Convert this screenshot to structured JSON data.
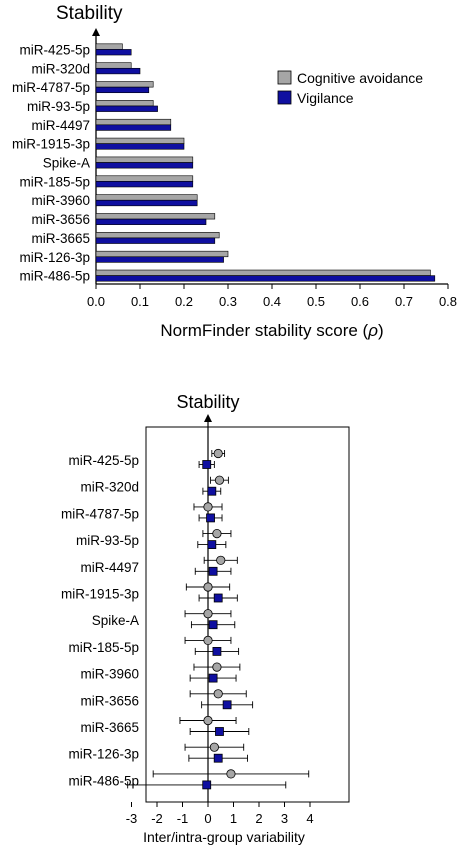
{
  "chart_data": [
    {
      "type": "bar",
      "orientation": "horizontal",
      "annotation": "Stability",
      "xlabel_text": "NormFinder stability score (",
      "xlabel_symbol": "ρ",
      "xlabel_close": ")",
      "xlim": [
        0,
        0.8
      ],
      "xticks": [
        "0.0",
        "0.1",
        "0.2",
        "0.3",
        "0.4",
        "0.5",
        "0.6",
        "0.7",
        "0.8"
      ],
      "categories": [
        "miR-425-5p",
        "miR-320d",
        "miR-4787-5p",
        "miR-93-5p",
        "miR-4497",
        "miR-1915-3p",
        "Spike-A",
        "miR-185-5p",
        "miR-3960",
        "miR-3656",
        "miR-3665",
        "miR-126-3p",
        "miR-486-5p"
      ],
      "series": [
        {
          "name": "Cognitive avoidance",
          "color": "#a6a6a6",
          "values": [
            0.06,
            0.08,
            0.13,
            0.13,
            0.17,
            0.2,
            0.22,
            0.22,
            0.23,
            0.27,
            0.28,
            0.3,
            0.76
          ]
        },
        {
          "name": "Vigilance",
          "color": "#0f0fa0",
          "values": [
            0.08,
            0.1,
            0.12,
            0.14,
            0.17,
            0.2,
            0.22,
            0.22,
            0.23,
            0.25,
            0.27,
            0.29,
            0.77
          ]
        }
      ],
      "legend_position": "top-right",
      "grid": false
    },
    {
      "type": "scatter",
      "subtype": "point-errorbar",
      "annotation": "Stability",
      "xlabel": "Inter/intra-group variability",
      "xlim": [
        -3.3,
        4.3
      ],
      "xticks": [
        "-3",
        "-2",
        "-1",
        "0",
        "1",
        "2",
        "3",
        "4"
      ],
      "categories": [
        "miR-425-5p",
        "miR-320d",
        "miR-4787-5p",
        "miR-93-5p",
        "miR-4497",
        "miR-1915-3p",
        "Spike-A",
        "miR-185-5p",
        "miR-3960",
        "miR-3656",
        "miR-3665",
        "miR-126-3p",
        "miR-486-5p"
      ],
      "series": [
        {
          "marker": "circle",
          "color": "#a6a6a6",
          "values": [
            0.4,
            0.45,
            0.0,
            0.35,
            0.5,
            0.0,
            0.0,
            0.0,
            0.35,
            0.4,
            0.0,
            0.25,
            0.9
          ],
          "errors": [
            0.25,
            0.35,
            0.55,
            0.55,
            0.65,
            0.85,
            0.9,
            0.9,
            0.9,
            1.1,
            1.1,
            1.15,
            3.05
          ]
        },
        {
          "marker": "square",
          "color": "#0f0fa0",
          "values": [
            -0.05,
            0.15,
            0.1,
            0.15,
            0.2,
            0.4,
            0.2,
            0.35,
            0.2,
            0.75,
            0.45,
            0.4,
            -0.05
          ],
          "errors": [
            0.3,
            0.35,
            0.45,
            0.55,
            0.7,
            0.75,
            0.85,
            0.85,
            0.9,
            1.0,
            1.15,
            1.15,
            3.1
          ]
        }
      ],
      "grid": false
    }
  ]
}
